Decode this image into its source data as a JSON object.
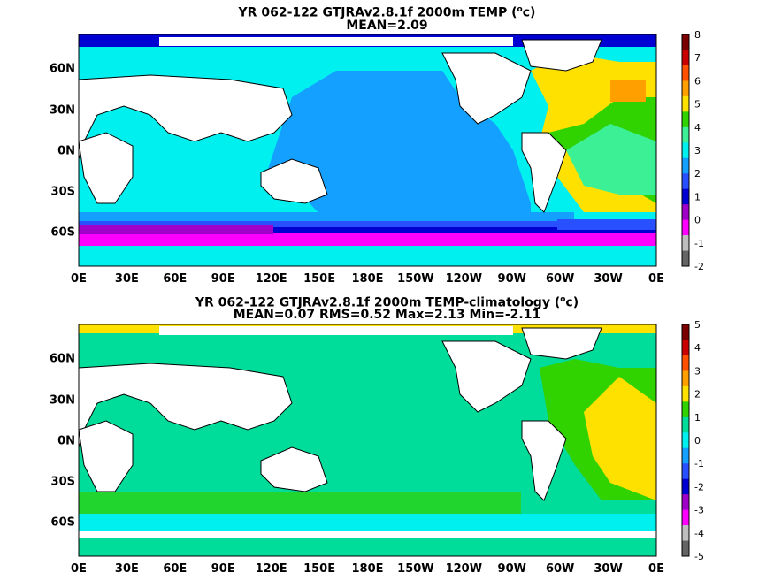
{
  "panels": [
    {
      "title_line1_pre": "YR 062-122 GTJRAv2.8.1f 2000m TEMP (",
      "title_unit_base": "o",
      "title_line1_post": "c)",
      "title_line2": "MEAN=2.09",
      "lon_ticks": [
        "0E",
        "30E",
        "60E",
        "90E",
        "120E",
        "150E",
        "180E",
        "150W",
        "120W",
        "90W",
        "60W",
        "30W",
        "0E"
      ],
      "lat_ticks": [
        "60N",
        "30N",
        "0N",
        "30S",
        "60S"
      ],
      "colorbar": {
        "labels": [
          "8",
          "7",
          "6",
          "5",
          "4",
          "3",
          "2",
          "1",
          "0",
          "-1",
          "-2"
        ],
        "colors": [
          "#7a0000",
          "#c80000",
          "#ff5000",
          "#ffa000",
          "#ffe100",
          "#30d200",
          "#3cf096",
          "#00f0f0",
          "#14a0ff",
          "#2850ff",
          "#0000d2",
          "#a000c8",
          "#ff00ff",
          "#bebebe",
          "#646464"
        ]
      }
    },
    {
      "title_line1_pre": "YR 062-122 GTJRAv2.8.1f 2000m TEMP-climatology (",
      "title_unit_base": "o",
      "title_line1_post": "c)",
      "title_line2": "MEAN=0.07   RMS=0.52   Max=2.13   Min=-2.11",
      "lon_ticks": [
        "0E",
        "30E",
        "60E",
        "90E",
        "120E",
        "150E",
        "180E",
        "150W",
        "120W",
        "90W",
        "60W",
        "30W",
        "0E"
      ],
      "lat_ticks": [
        "60N",
        "30N",
        "0N",
        "30S",
        "60S"
      ],
      "colorbar": {
        "labels": [
          "5",
          "4",
          "3",
          "2",
          "1",
          "0",
          "-1",
          "-2",
          "-3",
          "-4",
          "-5"
        ],
        "colors": [
          "#7a0000",
          "#c80000",
          "#ff5000",
          "#ffa000",
          "#ffe100",
          "#30d200",
          "#00dc9a",
          "#00f0f0",
          "#14a0ff",
          "#2850ff",
          "#0000d2",
          "#a000c8",
          "#ff00ff",
          "#bebebe",
          "#646464"
        ]
      }
    }
  ]
}
